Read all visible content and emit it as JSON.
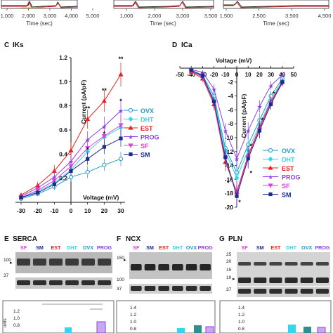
{
  "colors": {
    "OVX": "#1f9ac9",
    "DHT": "#33d6f0",
    "EST": "#e8201e",
    "PROG": "#8a3fe8",
    "SF": "#e040d8",
    "SM": "#1b2a8c",
    "trace_black": "#222222",
    "trace_red": "#d62020"
  },
  "top_strip": {
    "xlabel": "Time (sec)",
    "ticks_left": [
      "1,000",
      "2,000",
      "3,000",
      "4,000",
      "5,000"
    ],
    "ticks_right": [
      "1,000",
      "2,000",
      "3,000",
      "3,500"
    ],
    "ticks_third": [
      "1,500",
      "2,500",
      "3,500",
      "4,500"
    ]
  },
  "panel_c": {
    "letter": "C",
    "name": "IKs"
  },
  "panel_d": {
    "letter": "D",
    "name": "ICa"
  },
  "panel_e": {
    "letter": "E",
    "name": "SERCA",
    "lanes": [
      "SF",
      "SM",
      "EST",
      "DHT",
      "OVX",
      "PROG"
    ],
    "markers": [
      "100",
      "37"
    ]
  },
  "panel_f": {
    "letter": "F",
    "name": "NCX",
    "lanes": [
      "SF",
      "SM",
      "EST",
      "DHT",
      "OVX",
      "PROG"
    ],
    "markers": [
      "150",
      "100",
      "37"
    ]
  },
  "panel_g": {
    "letter": "G",
    "name": "PLN",
    "lanes": [
      "SF",
      "SM",
      "EST",
      "DHT",
      "OVX",
      "PROG"
    ],
    "markers": [
      "25",
      "20",
      "15",
      "10",
      "37"
    ]
  },
  "bottom_ticks": {
    "e": [
      "1.2",
      "1.0",
      "0.8"
    ],
    "f": [
      "1.4",
      "1.2",
      "1.0",
      "0.8"
    ],
    "g": [
      "1.4",
      "1.2",
      "1.0",
      "0.8"
    ],
    "ylabel": "units"
  },
  "chart_data": [
    {
      "id": "iks",
      "type": "line",
      "xlabel": "Voltage (mV)",
      "ylabel": "Current (pA/pF)",
      "x": [
        -30,
        -20,
        -10,
        0,
        10,
        20,
        30
      ],
      "xlim": [
        -30,
        30
      ],
      "ylim": [
        0,
        1.2
      ],
      "xticks": [
        "-30",
        "-20",
        "-10",
        "0",
        "10",
        "20",
        "30"
      ],
      "yticks": [
        "0.2",
        "0.4",
        "0.6",
        "0.8",
        "1.0",
        "1.2"
      ],
      "significance": [
        {
          "x": 10,
          "y": 0.76,
          "label": "**"
        },
        {
          "x": 20,
          "y": 0.91,
          "label": "**"
        },
        {
          "x": 30,
          "y": 1.17,
          "label": "**"
        },
        {
          "x": 10,
          "y": 0.42,
          "label": "*"
        },
        {
          "x": 20,
          "y": 0.55,
          "label": "*"
        },
        {
          "x": 30,
          "y": 0.82,
          "label": "*"
        }
      ],
      "legend": [
        "OVX",
        "DHT",
        "EST",
        "PROG",
        "SF",
        "SM"
      ],
      "series": [
        {
          "name": "OVX",
          "values": [
            0.03,
            0.07,
            0.13,
            0.21,
            0.25,
            0.31,
            0.36
          ],
          "errors": [
            0.01,
            0.02,
            0.03,
            0.04,
            0.05,
            0.05,
            0.06
          ]
        },
        {
          "name": "DHT",
          "values": [
            0.04,
            0.09,
            0.16,
            0.27,
            0.42,
            0.54,
            0.62
          ],
          "errors": [
            0.01,
            0.02,
            0.03,
            0.05,
            0.06,
            0.07,
            0.08
          ]
        },
        {
          "name": "EST",
          "values": [
            0.06,
            0.14,
            0.26,
            0.43,
            0.69,
            0.84,
            1.06
          ],
          "errors": [
            0.02,
            0.03,
            0.05,
            0.07,
            0.08,
            0.09,
            0.1
          ]
        },
        {
          "name": "PROG",
          "values": [
            0.05,
            0.12,
            0.21,
            0.34,
            0.52,
            0.63,
            0.76
          ],
          "errors": [
            0.01,
            0.03,
            0.04,
            0.06,
            0.07,
            0.08,
            0.09
          ]
        },
        {
          "name": "SF",
          "values": [
            0.04,
            0.1,
            0.18,
            0.3,
            0.45,
            0.55,
            0.64
          ],
          "errors": [
            0.01,
            0.02,
            0.04,
            0.05,
            0.06,
            0.07,
            0.08
          ]
        },
        {
          "name": "SM",
          "values": [
            0.04,
            0.08,
            0.15,
            0.26,
            0.36,
            0.46,
            0.53
          ],
          "errors": [
            0.01,
            0.02,
            0.03,
            0.04,
            0.05,
            0.06,
            0.07
          ]
        }
      ]
    },
    {
      "id": "ica",
      "type": "line",
      "xlabel": "Voltage (mV)",
      "ylabel": "Current (pA/pF)",
      "x": [
        -40,
        -30,
        -20,
        -10,
        0,
        10,
        20,
        30,
        40
      ],
      "xlim": [
        -50,
        50
      ],
      "ylim": [
        -20,
        0
      ],
      "xticks": [
        "-50",
        "-40",
        "-30",
        "-20",
        "-10",
        "0",
        "10",
        "20",
        "30",
        "40",
        "50"
      ],
      "yticks": [
        "-2",
        "-4",
        "-6",
        "-8",
        "-10",
        "-12",
        "-14",
        "-16",
        "-18",
        "-20"
      ],
      "significance": [
        {
          "x": 0,
          "y": -19.6,
          "label": "*"
        },
        {
          "x": 10,
          "y": -11.5,
          "label": "*"
        },
        {
          "x": 20,
          "y": -7.8,
          "label": "*"
        },
        {
          "x": 30,
          "y": -4.0,
          "label": "*"
        },
        {
          "x": -10,
          "y": -16.8,
          "label": "*"
        },
        {
          "x": 10,
          "y": -15.4,
          "label": "*"
        }
      ],
      "legend": [
        "OVX",
        "DHT",
        "EST",
        "PROG",
        "SF",
        "SM"
      ],
      "series": [
        {
          "name": "OVX",
          "values": [
            -0.3,
            -1.0,
            -4.0,
            -11.5,
            -15.0,
            -11.0,
            -7.5,
            -4.0,
            -1.5
          ],
          "errors": [
            0.2,
            0.4,
            0.8,
            1.2,
            1.5,
            1.3,
            1.0,
            0.7,
            0.4
          ]
        },
        {
          "name": "DHT",
          "values": [
            -0.4,
            -1.1,
            -4.5,
            -12.0,
            -15.8,
            -11.8,
            -8.2,
            -4.5,
            -1.8
          ],
          "errors": [
            0.2,
            0.4,
            0.8,
            1.2,
            1.5,
            1.3,
            1.0,
            0.7,
            0.4
          ]
        },
        {
          "name": "EST",
          "values": [
            -0.5,
            -1.5,
            -5.2,
            -13.5,
            -17.8,
            -12.5,
            -8.5,
            -4.8,
            -2.0
          ],
          "errors": [
            0.2,
            0.5,
            0.9,
            1.3,
            1.6,
            1.4,
            1.1,
            0.8,
            0.5
          ]
        },
        {
          "name": "PROG",
          "values": [
            -0.2,
            -0.6,
            -3.0,
            -9.0,
            -13.0,
            -9.0,
            -5.5,
            -2.5,
            -1.0
          ],
          "errors": [
            0.2,
            0.3,
            0.7,
            1.1,
            1.4,
            1.2,
            0.9,
            0.6,
            0.3
          ]
        },
        {
          "name": "SF",
          "values": [
            -0.4,
            -1.3,
            -5.0,
            -13.0,
            -18.0,
            -12.8,
            -8.8,
            -5.0,
            -2.2
          ],
          "errors": [
            0.2,
            0.5,
            0.9,
            1.3,
            1.6,
            1.4,
            1.1,
            0.8,
            0.5
          ]
        },
        {
          "name": "SM",
          "values": [
            -0.3,
            -1.1,
            -4.8,
            -12.8,
            -18.4,
            -13.0,
            -9.0,
            -5.2,
            -2.0
          ],
          "errors": [
            0.2,
            0.5,
            0.9,
            1.3,
            1.6,
            1.4,
            1.1,
            0.8,
            0.5
          ]
        }
      ]
    }
  ]
}
